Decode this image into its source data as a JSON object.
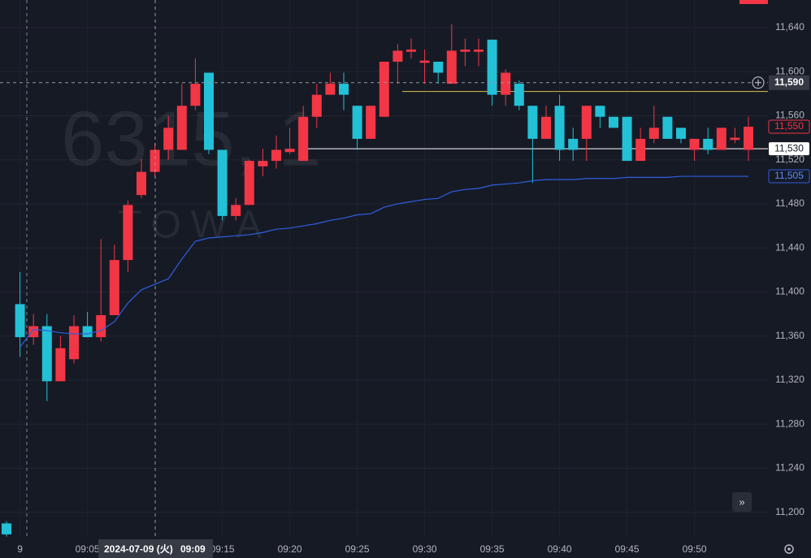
{
  "chart_data": {
    "type": "candlestick",
    "watermark": "6315, 1",
    "watermark_subtitle": "TOWA",
    "categories": [
      null,
      "9",
      null,
      null,
      null,
      null,
      "09:05",
      null,
      null,
      null,
      null,
      null,
      null,
      null,
      null,
      null,
      "09:15",
      null,
      null,
      null,
      null,
      "09:20",
      null,
      null,
      null,
      null,
      "09:25",
      null,
      null,
      null,
      null,
      "09:30",
      null,
      null,
      null,
      null,
      "09:35",
      null,
      null,
      null,
      null,
      "09:40",
      null,
      null,
      null,
      null,
      "09:45",
      null,
      null,
      null,
      null,
      "09:50",
      null,
      null,
      null,
      null
    ],
    "open": [
      11190,
      11389,
      11359,
      11369,
      11319,
      11339,
      11369,
      11359,
      11379,
      11429,
      11488,
      11509,
      11529,
      11529,
      11569,
      11599,
      11529,
      11469,
      11479,
      11514,
      11519,
      11527,
      11519,
      11559,
      11579,
      11589,
      11569,
      11539,
      11559,
      11609,
      11618,
      11608,
      11609,
      11589,
      11618,
      11618,
      11629,
      11579,
      11589,
      11569,
      11539,
      11569,
      11539,
      11539,
      11569,
      11559,
      11559,
      11519,
      11539,
      11559,
      11549,
      11529,
      11539,
      11529,
      11538,
      11529
    ],
    "high": [
      11192,
      11418,
      11380,
      11380,
      11360,
      11379,
      11382,
      11448,
      11443,
      11483,
      11521,
      11535,
      11560,
      11589,
      11612,
      11599,
      11529,
      11485,
      11520,
      11530,
      11542,
      11549,
      11569,
      11589,
      11599,
      11599,
      11569,
      11569,
      11609,
      11625,
      11630,
      11620,
      11609,
      11643,
      11630,
      11630,
      11629,
      11602,
      11592,
      11569,
      11569,
      11579,
      11549,
      11569,
      11569,
      11559,
      11559,
      11549,
      11569,
      11559,
      11549,
      11539,
      11549,
      11549,
      11549,
      11559
    ],
    "low": [
      11178,
      11341,
      11352,
      11301,
      11319,
      11335,
      11359,
      11355,
      11379,
      11418,
      11485,
      11505,
      11520,
      11529,
      11565,
      11525,
      11465,
      11465,
      11479,
      11505,
      11512,
      11525,
      11519,
      11549,
      11579,
      11565,
      11529,
      11539,
      11559,
      11589,
      11612,
      11589,
      11589,
      11589,
      11605,
      11605,
      11569,
      11569,
      11565,
      11499,
      11539,
      11519,
      11519,
      11519,
      11549,
      11549,
      11519,
      11519,
      11535,
      11539,
      11535,
      11519,
      11525,
      11529,
      11535,
      11519
    ],
    "close": [
      11180,
      11359,
      11369,
      11319,
      11349,
      11369,
      11359,
      11379,
      11429,
      11479,
      11509,
      11529,
      11549,
      11569,
      11589,
      11529,
      11469,
      11479,
      11519,
      11519,
      11529,
      11530,
      11559,
      11579,
      11589,
      11579,
      11539,
      11569,
      11609,
      11619,
      11620,
      11610,
      11599,
      11619,
      11620,
      11620,
      11579,
      11599,
      11569,
      11539,
      11559,
      11529,
      11529,
      11569,
      11559,
      11549,
      11519,
      11539,
      11549,
      11539,
      11539,
      11539,
      11529,
      11549,
      11540,
      11550
    ],
    "up_color": "#f23645",
    "down_color": "#22c1d6",
    "last_price_label": "11,550",
    "series": [
      {
        "color": "#2f5fe0",
        "value_label": "11,505",
        "values": [
          null,
          11350,
          11366,
          11365,
          11363,
          11362,
          11362,
          11365,
          11373,
          11390,
          11402,
          11407,
          11412,
          11430,
          11446,
          11449,
          11450,
          11451,
          11452,
          11454,
          11457,
          11458,
          11460,
          11462,
          11465,
          11467,
          11470,
          11471,
          11477,
          11480,
          11482,
          11484,
          11485,
          11491,
          11493,
          11494,
          11497,
          11498,
          11499,
          11501,
          11502,
          11502,
          11502,
          11503,
          11503,
          11503,
          11504,
          11504,
          11504,
          11504,
          11505,
          11505,
          11505,
          11505,
          11505,
          11505
        ]
      }
    ],
    "price_lines": [
      {
        "value": 11582,
        "color": "#d9c04a"
      },
      {
        "value": 11530,
        "color": "#ffffff",
        "label": "11,530"
      }
    ],
    "crosshair": {
      "date": "2024-07-09 (火)",
      "time": "09:09",
      "price": {
        "value": 11590,
        "label": "11,590"
      }
    },
    "ylim": [
      11177,
      11665
    ],
    "yticks": [
      {
        "value": 11200,
        "label": "11,200"
      },
      {
        "value": 11240,
        "label": "11,240"
      },
      {
        "value": 11280,
        "label": "11,280"
      },
      {
        "value": 11320,
        "label": "11,320"
      },
      {
        "value": 11360,
        "label": "11,360"
      },
      {
        "value": 11400,
        "label": "11,400"
      },
      {
        "value": 11440,
        "label": "11,440"
      },
      {
        "value": 11480,
        "label": "11,480"
      },
      {
        "value": 11520,
        "label": "11,520"
      },
      {
        "value": 11560,
        "label": "11,560"
      },
      {
        "value": 11600,
        "label": "11,600"
      },
      {
        "value": 11640,
        "label": "11,640"
      }
    ],
    "grid": true
  }
}
